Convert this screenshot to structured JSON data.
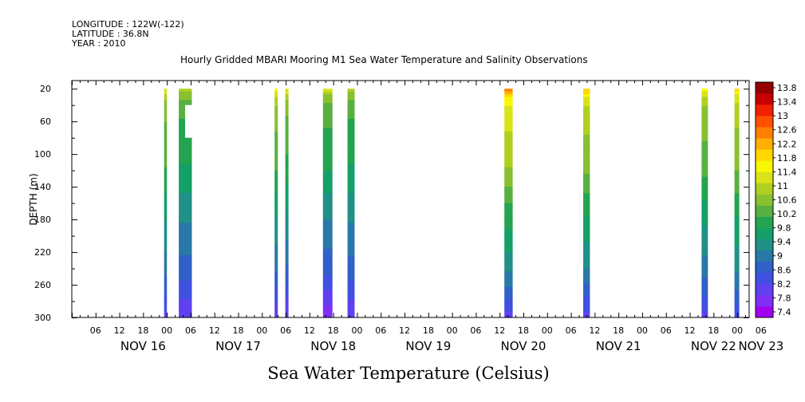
{
  "header": {
    "longitude": "LONGITUDE : 122W(-122)",
    "latitude": "LATITUDE : 36.8N",
    "year": "YEAR : 2010"
  },
  "chart_data": {
    "type": "heatmap",
    "title": "Hourly Gridded MBARI Mooring M1 Sea Water Temperature and Salinity Observations",
    "xlabel": "",
    "ylabel": "DEPTH (m)",
    "colorbar_title": "Sea Water Temperature (Celsius)",
    "y_range": [
      300,
      10
    ],
    "y_inverted": true,
    "y_ticks": [
      20,
      60,
      100,
      140,
      180,
      220,
      260,
      300
    ],
    "x_hour_ticks": [
      "06",
      "12",
      "18",
      "00",
      "06",
      "12",
      "18",
      "00",
      "06",
      "12",
      "18",
      "00",
      "06",
      "12",
      "18",
      "00",
      "06",
      "12",
      "18",
      "00",
      "06",
      "12",
      "18",
      "00",
      "06",
      "12",
      "18",
      "00",
      "06"
    ],
    "x_day_labels": [
      {
        "label": "NOV 16",
        "hour": 12
      },
      {
        "label": "NOV 17",
        "hour": 36
      },
      {
        "label": "NOV 18",
        "hour": 60
      },
      {
        "label": "NOV 19",
        "hour": 84
      },
      {
        "label": "NOV 20",
        "hour": 108
      },
      {
        "label": "NOV 21",
        "hour": 132
      },
      {
        "label": "NOV 22",
        "hour": 156
      },
      {
        "label": "NOV 23",
        "hour": 168
      }
    ],
    "colorbar_labels": [
      "13.8",
      "13.4",
      "13",
      "12.6",
      "12.2",
      "11.8",
      "11.4",
      "11",
      "10.6",
      "10.2",
      "9.8",
      "9.4",
      "9",
      "8.6",
      "8.2",
      "7.8",
      "7.4"
    ],
    "color_min": 7.4,
    "color_max": 13.8,
    "palette": [
      "#a000f0",
      "#8030f4",
      "#6040f0",
      "#4050e0",
      "#3060c8",
      "#2878a8",
      "#209088",
      "#14a068",
      "#24a450",
      "#58b040",
      "#88c030",
      "#b0d020",
      "#d8e418",
      "#f8f800",
      "#ffd800",
      "#ffb000",
      "#ff8000",
      "#ff5000",
      "#f02000",
      "#c80000",
      "#960000"
    ],
    "profile": [
      {
        "depth": 20,
        "temp": 11.0
      },
      {
        "depth": 30,
        "temp": 10.5
      },
      {
        "depth": 45,
        "temp": 10.2
      },
      {
        "depth": 80,
        "temp": 10.0
      },
      {
        "depth": 120,
        "temp": 9.8
      },
      {
        "depth": 160,
        "temp": 9.4
      },
      {
        "depth": 200,
        "temp": 9.1
      },
      {
        "depth": 240,
        "temp": 8.8
      },
      {
        "depth": 270,
        "temp": 8.4
      },
      {
        "depth": 300,
        "temp": 8.0
      }
    ],
    "columns": [
      {
        "start": 23.3,
        "end": 24.0,
        "surface": 11.4,
        "bottom": 8.2
      },
      {
        "start": 27.0,
        "end": 30.3,
        "surface": 11.0,
        "bottom": 8.0,
        "gap": {
          "start": 28.6,
          "end": 30.3,
          "top": 40,
          "bottom": 80
        }
      },
      {
        "start": 51.2,
        "end": 52.0,
        "surface": 11.6,
        "bottom": 8.0
      },
      {
        "start": 53.9,
        "end": 54.7,
        "surface": 11.4,
        "bottom": 8.0
      },
      {
        "start": 63.4,
        "end": 65.8,
        "surface": 11.2,
        "bottom": 7.8
      },
      {
        "start": 69.6,
        "end": 71.4,
        "surface": 11.0,
        "bottom": 8.0
      },
      {
        "start": 109.2,
        "end": 111.3,
        "surface": 12.4,
        "bottom": 8.2
      },
      {
        "start": 129.1,
        "end": 130.8,
        "surface": 12.0,
        "bottom": 8.2
      },
      {
        "start": 159.0,
        "end": 160.6,
        "surface": 11.6,
        "bottom": 8.2
      },
      {
        "start": 167.3,
        "end": 168.5,
        "surface": 11.8,
        "bottom": 8.4
      }
    ]
  }
}
